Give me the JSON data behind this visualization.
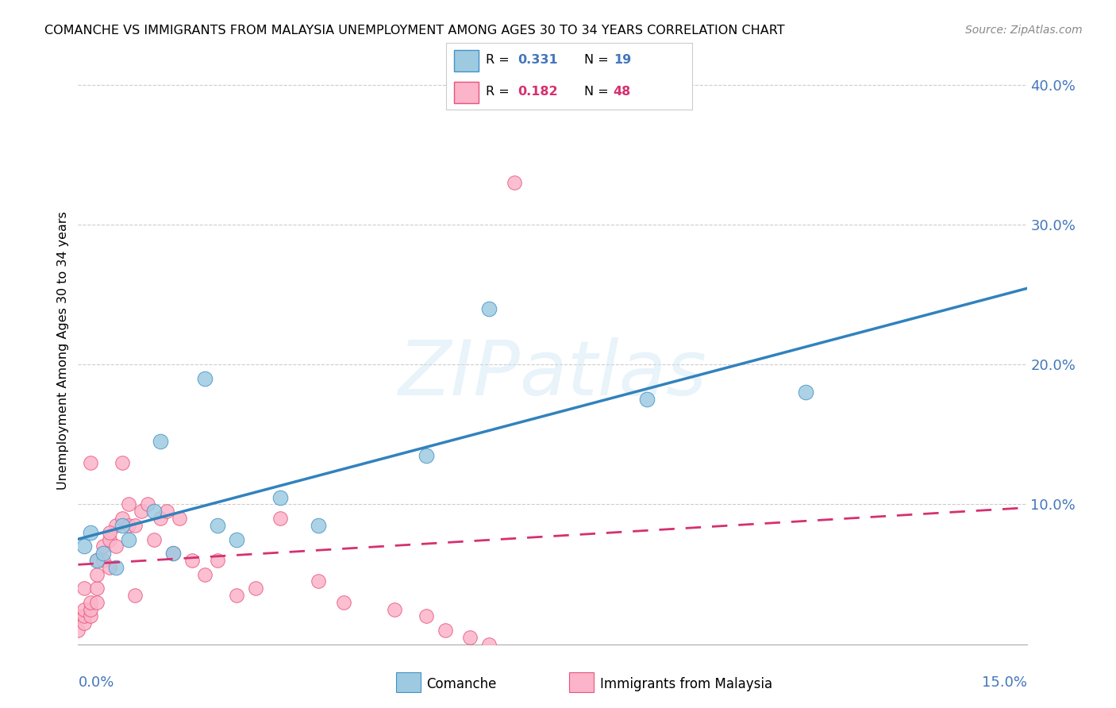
{
  "title": "COMANCHE VS IMMIGRANTS FROM MALAYSIA UNEMPLOYMENT AMONG AGES 30 TO 34 YEARS CORRELATION CHART",
  "source": "Source: ZipAtlas.com",
  "ylabel": "Unemployment Among Ages 30 to 34 years",
  "xlim": [
    0,
    0.15
  ],
  "ylim": [
    0,
    0.42
  ],
  "yticks": [
    0.0,
    0.1,
    0.2,
    0.3,
    0.4
  ],
  "ytick_labels": [
    "",
    "10.0%",
    "20.0%",
    "30.0%",
    "40.0%"
  ],
  "xtick_left_label": "0.0%",
  "xtick_right_label": "15.0%",
  "blue_fill": "#9ecae1",
  "blue_edge": "#4292c6",
  "pink_fill": "#fbb4c9",
  "pink_edge": "#e8537a",
  "line_blue": "#3182bd",
  "line_pink": "#d63070",
  "axis_label_color": "#4477bb",
  "grid_color": "#cccccc",
  "legend_label1": "Comanche",
  "legend_label2": "Immigrants from Malaysia",
  "R1": "0.331",
  "N1": "19",
  "R2": "0.182",
  "N2": "48",
  "comanche_x": [
    0.001,
    0.002,
    0.003,
    0.004,
    0.006,
    0.008,
    0.012,
    0.015,
    0.02,
    0.022,
    0.025,
    0.032,
    0.038,
    0.055,
    0.065,
    0.09,
    0.115,
    0.013,
    0.007
  ],
  "comanche_y": [
    0.07,
    0.08,
    0.06,
    0.065,
    0.055,
    0.075,
    0.095,
    0.065,
    0.19,
    0.085,
    0.075,
    0.105,
    0.085,
    0.135,
    0.24,
    0.175,
    0.18,
    0.145,
    0.085
  ],
  "malaysia_x": [
    0.0,
    0.0,
    0.001,
    0.001,
    0.001,
    0.001,
    0.002,
    0.002,
    0.002,
    0.003,
    0.003,
    0.003,
    0.004,
    0.004,
    0.005,
    0.005,
    0.006,
    0.006,
    0.007,
    0.008,
    0.008,
    0.009,
    0.01,
    0.011,
    0.012,
    0.013,
    0.014,
    0.015,
    0.016,
    0.018,
    0.02,
    0.022,
    0.025,
    0.028,
    0.032,
    0.038,
    0.042,
    0.05,
    0.055,
    0.058,
    0.062,
    0.065,
    0.002,
    0.003,
    0.005,
    0.007,
    0.009,
    0.069
  ],
  "malaysia_y": [
    0.01,
    0.02,
    0.015,
    0.02,
    0.025,
    0.04,
    0.02,
    0.025,
    0.03,
    0.04,
    0.05,
    0.06,
    0.06,
    0.07,
    0.055,
    0.075,
    0.07,
    0.085,
    0.09,
    0.085,
    0.1,
    0.085,
    0.095,
    0.1,
    0.075,
    0.09,
    0.095,
    0.065,
    0.09,
    0.06,
    0.05,
    0.06,
    0.035,
    0.04,
    0.09,
    0.045,
    0.03,
    0.025,
    0.02,
    0.01,
    0.005,
    0.0,
    0.13,
    0.03,
    0.08,
    0.13,
    0.035,
    0.33
  ]
}
